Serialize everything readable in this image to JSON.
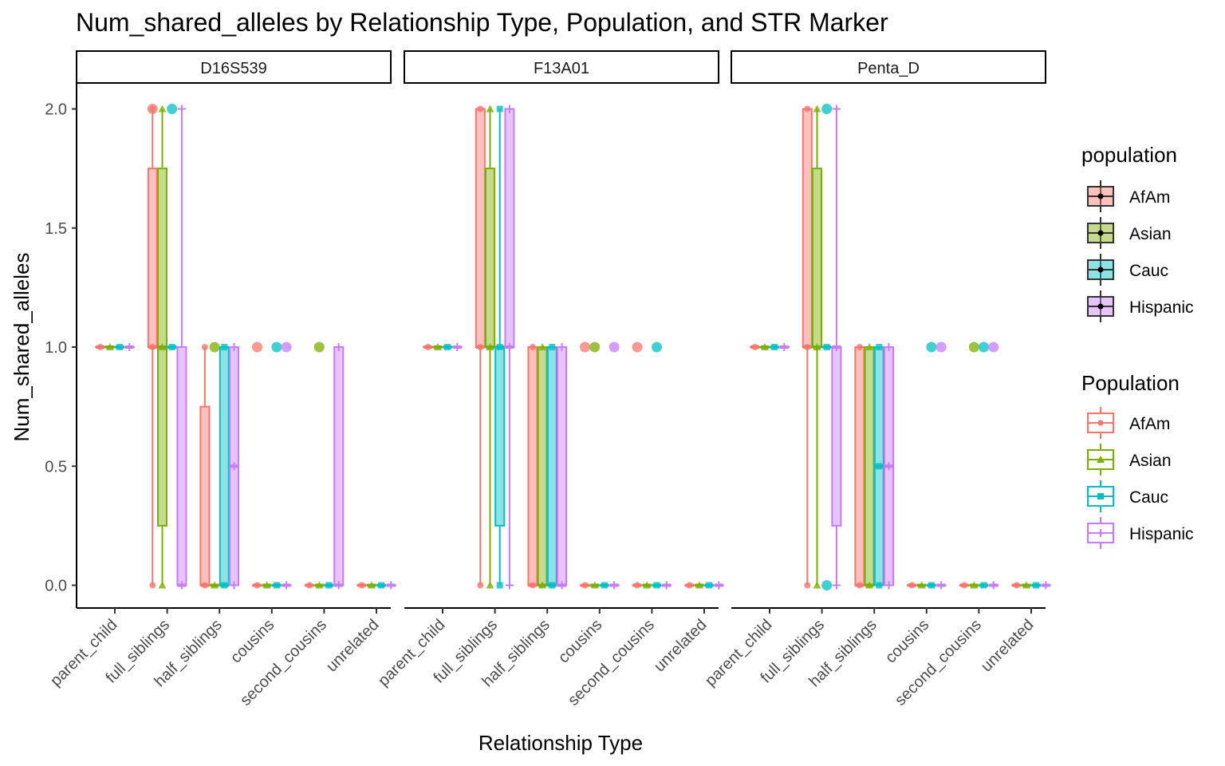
{
  "chart_data": {
    "type": "boxplot",
    "title": "Num_shared_alleles by Relationship Type, Population, and STR Marker",
    "xlabel": "Relationship Type",
    "ylabel": "Num_shared_alleles",
    "ylim": [
      -0.1,
      2.1
    ],
    "yticks": [
      "0.0",
      "0.5",
      "1.0",
      "1.5",
      "2.0"
    ],
    "ytick_values": [
      0,
      0.5,
      1.0,
      1.5,
      2.0
    ],
    "categories": [
      "parent_child",
      "full_siblings",
      "half_siblings",
      "cousins",
      "second_cousins",
      "unrelated"
    ],
    "facets": [
      "D16S539",
      "F13A01",
      "Penta_D"
    ],
    "legend_fill": {
      "title": "population",
      "entries": [
        "AfAm",
        "Asian",
        "Cauc",
        "Hispanic"
      ]
    },
    "legend_color": {
      "title": "Population",
      "entries": [
        "AfAm",
        "Asian",
        "Cauc",
        "Hispanic"
      ]
    },
    "colors": {
      "AfAm": "#F8766D",
      "Asian": "#7CAE00",
      "Cauc": "#00BFC4",
      "Hispanic": "#C77CFF"
    },
    "boxes": {
      "D16S539": {
        "parent_child": {
          "AfAm": [
            1,
            1,
            1,
            1,
            1
          ],
          "Asian": [
            1,
            1,
            1,
            1,
            1
          ],
          "Cauc": [
            1,
            1,
            1,
            1,
            1
          ],
          "Hispanic": [
            1,
            1,
            1,
            1,
            1
          ]
        },
        "full_siblings": {
          "AfAm": [
            0,
            1,
            1,
            1.75,
            2
          ],
          "Asian": [
            0,
            0.25,
            1,
            1.75,
            2
          ],
          "Cauc": [
            1,
            1,
            1,
            1,
            1
          ],
          "Hispanic": [
            0,
            0,
            0,
            1,
            2
          ]
        },
        "half_siblings": {
          "AfAm": [
            0,
            0,
            0,
            0.75,
            1
          ],
          "Asian": [
            0,
            0,
            0,
            0,
            0
          ],
          "Cauc": [
            0,
            0,
            0,
            1,
            1
          ],
          "Hispanic": [
            0,
            0,
            0.5,
            1,
            1
          ]
        },
        "cousins": {
          "AfAm": [
            0,
            0,
            0,
            0,
            0
          ],
          "Asian": [
            0,
            0,
            0,
            0,
            0
          ],
          "Cauc": [
            0,
            0,
            0,
            0,
            0
          ],
          "Hispanic": [
            0,
            0,
            0,
            0,
            0
          ]
        },
        "second_cousins": {
          "AfAm": [
            0,
            0,
            0,
            0,
            0
          ],
          "Asian": [
            0,
            0,
            0,
            0,
            0
          ],
          "Cauc": [
            0,
            0,
            0,
            0,
            0
          ],
          "Hispanic": [
            0,
            0,
            0,
            1,
            1
          ]
        },
        "unrelated": {
          "AfAm": [
            0,
            0,
            0,
            0,
            0
          ],
          "Asian": [
            0,
            0,
            0,
            0,
            0
          ],
          "Cauc": [
            0,
            0,
            0,
            0,
            0
          ],
          "Hispanic": [
            0,
            0,
            0,
            0,
            0
          ]
        }
      },
      "F13A01": {
        "parent_child": {
          "AfAm": [
            1,
            1,
            1,
            1,
            1
          ],
          "Asian": [
            1,
            1,
            1,
            1,
            1
          ],
          "Cauc": [
            1,
            1,
            1,
            1,
            1
          ],
          "Hispanic": [
            1,
            1,
            1,
            1,
            1
          ]
        },
        "full_siblings": {
          "AfAm": [
            0,
            1,
            1,
            2,
            2
          ],
          "Asian": [
            0,
            1,
            1,
            1.75,
            2
          ],
          "Cauc": [
            0,
            0.25,
            1,
            1,
            2
          ],
          "Hispanic": [
            0,
            1,
            1,
            2,
            2
          ]
        },
        "half_siblings": {
          "AfAm": [
            0,
            0,
            0,
            1,
            1
          ],
          "Asian": [
            0,
            0,
            0,
            1,
            1
          ],
          "Cauc": [
            0,
            0,
            0,
            1,
            1
          ],
          "Hispanic": [
            0,
            0,
            0,
            1,
            1
          ]
        },
        "cousins": {
          "AfAm": [
            0,
            0,
            0,
            0,
            0
          ],
          "Asian": [
            0,
            0,
            0,
            0,
            0
          ],
          "Cauc": [
            0,
            0,
            0,
            0,
            0
          ],
          "Hispanic": [
            0,
            0,
            0,
            0,
            0
          ]
        },
        "second_cousins": {
          "AfAm": [
            0,
            0,
            0,
            0,
            0
          ],
          "Asian": [
            0,
            0,
            0,
            0,
            0
          ],
          "Cauc": [
            0,
            0,
            0,
            0,
            0
          ],
          "Hispanic": [
            0,
            0,
            0,
            0,
            0
          ]
        },
        "unrelated": {
          "AfAm": [
            0,
            0,
            0,
            0,
            0
          ],
          "Asian": [
            0,
            0,
            0,
            0,
            0
          ],
          "Cauc": [
            0,
            0,
            0,
            0,
            0
          ],
          "Hispanic": [
            0,
            0,
            0,
            0,
            0
          ]
        }
      },
      "Penta_D": {
        "parent_child": {
          "AfAm": [
            1,
            1,
            1,
            1,
            1
          ],
          "Asian": [
            1,
            1,
            1,
            1,
            1
          ],
          "Cauc": [
            1,
            1,
            1,
            1,
            1
          ],
          "Hispanic": [
            1,
            1,
            1,
            1,
            1
          ]
        },
        "full_siblings": {
          "AfAm": [
            0,
            1,
            1,
            2,
            2
          ],
          "Asian": [
            0,
            1,
            1,
            1.75,
            2
          ],
          "Cauc": [
            1,
            1,
            1,
            1,
            1
          ],
          "Hispanic": [
            0,
            0.25,
            1,
            1,
            2
          ]
        },
        "half_siblings": {
          "AfAm": [
            0,
            0,
            0,
            1,
            1
          ],
          "Asian": [
            0,
            0,
            0,
            1,
            1
          ],
          "Cauc": [
            0,
            0,
            0.5,
            1,
            1
          ],
          "Hispanic": [
            0,
            0,
            0.5,
            1,
            1
          ]
        },
        "cousins": {
          "AfAm": [
            0,
            0,
            0,
            0,
            0
          ],
          "Asian": [
            0,
            0,
            0,
            0,
            0
          ],
          "Cauc": [
            0,
            0,
            0,
            0,
            0
          ],
          "Hispanic": [
            0,
            0,
            0,
            0,
            0
          ]
        },
        "second_cousins": {
          "AfAm": [
            0,
            0,
            0,
            0,
            0
          ],
          "Asian": [
            0,
            0,
            0,
            0,
            0
          ],
          "Cauc": [
            0,
            0,
            0,
            0,
            0
          ],
          "Hispanic": [
            0,
            0,
            0,
            0,
            0
          ]
        },
        "unrelated": {
          "AfAm": [
            0,
            0,
            0,
            0,
            0
          ],
          "Asian": [
            0,
            0,
            0,
            0,
            0
          ],
          "Cauc": [
            0,
            0,
            0,
            0,
            0
          ],
          "Hispanic": [
            0,
            0,
            0,
            0,
            0
          ]
        }
      }
    },
    "outliers": {
      "D16S539": {
        "full_siblings": {
          "AfAm": [
            2
          ],
          "Cauc": [
            2
          ]
        },
        "half_siblings": {
          "Asian": [
            1
          ]
        },
        "cousins": {
          "AfAm": [
            1
          ],
          "Cauc": [
            1
          ],
          "Hispanic": [
            1
          ]
        },
        "second_cousins": {
          "Asian": [
            1
          ]
        }
      },
      "F13A01": {
        "cousins": {
          "AfAm": [
            1
          ],
          "Asian": [
            1
          ],
          "Hispanic": [
            1
          ]
        },
        "second_cousins": {
          "AfAm": [
            1
          ],
          "Cauc": [
            1
          ]
        }
      },
      "Penta_D": {
        "full_siblings": {
          "Cauc": [
            0,
            2
          ]
        },
        "cousins": {
          "Cauc": [
            1
          ],
          "Hispanic": [
            1
          ]
        },
        "second_cousins": {
          "Asian": [
            1
          ],
          "Cauc": [
            1
          ],
          "Hispanic": [
            1
          ]
        }
      }
    }
  }
}
